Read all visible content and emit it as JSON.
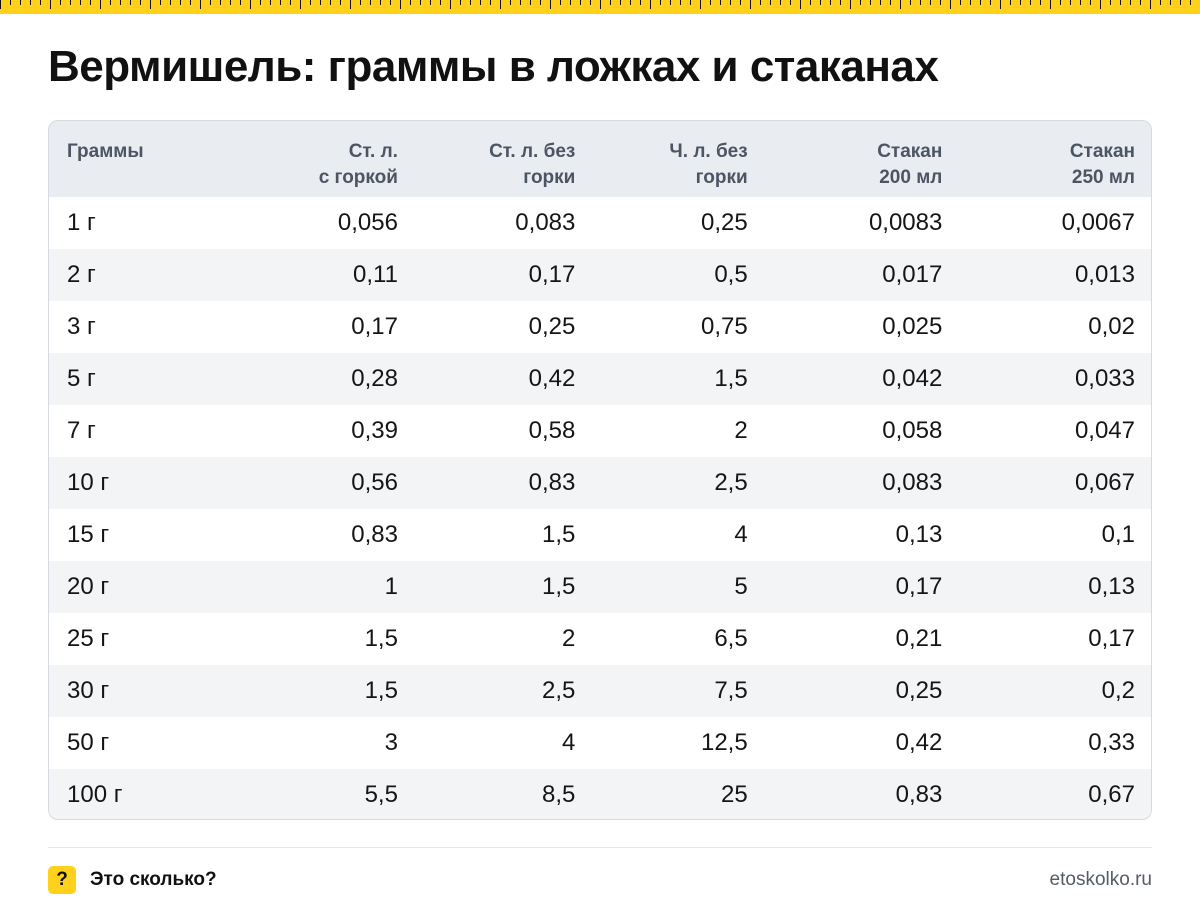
{
  "title": "Вермишель: граммы в ложках и стаканах",
  "table": {
    "headers": [
      {
        "l1": "Граммы",
        "l2": ""
      },
      {
        "l1": "Ст. л.",
        "l2": "с горкой"
      },
      {
        "l1": "Ст. л. без",
        "l2": "горки"
      },
      {
        "l1": "Ч. л. без",
        "l2": "горки"
      },
      {
        "l1": "Стакан",
        "l2": "200 мл"
      },
      {
        "l1": "Стакан",
        "l2": "250 мл"
      }
    ],
    "rows": [
      [
        "1 г",
        "0,056",
        "0,083",
        "0,25",
        "0,0083",
        "0,0067"
      ],
      [
        "2 г",
        "0,11",
        "0,17",
        "0,5",
        "0,017",
        "0,013"
      ],
      [
        "3 г",
        "0,17",
        "0,25",
        "0,75",
        "0,025",
        "0,02"
      ],
      [
        "5 г",
        "0,28",
        "0,42",
        "1,5",
        "0,042",
        "0,033"
      ],
      [
        "7 г",
        "0,39",
        "0,58",
        "2",
        "0,058",
        "0,047"
      ],
      [
        "10 г",
        "0,56",
        "0,83",
        "2,5",
        "0,083",
        "0,067"
      ],
      [
        "15 г",
        "0,83",
        "1,5",
        "4",
        "0,13",
        "0,1"
      ],
      [
        "20 г",
        "1",
        "1,5",
        "5",
        "0,17",
        "0,13"
      ],
      [
        "25 г",
        "1,5",
        "2",
        "6,5",
        "0,21",
        "0,17"
      ],
      [
        "30 г",
        "1,5",
        "2,5",
        "7,5",
        "0,25",
        "0,2"
      ],
      [
        "50 г",
        "3",
        "4",
        "12,5",
        "0,42",
        "0,33"
      ],
      [
        "100 г",
        "5,5",
        "8,5",
        "25",
        "0,83",
        "0,67"
      ]
    ]
  },
  "footer": {
    "icon_glyph": "?",
    "brand": "Это сколько?",
    "site": "etoskolko.ru"
  },
  "colors": {
    "accent": "#FFD11A",
    "header_bg": "#e9ecf0",
    "stripe_bg": "#f3f4f6"
  }
}
